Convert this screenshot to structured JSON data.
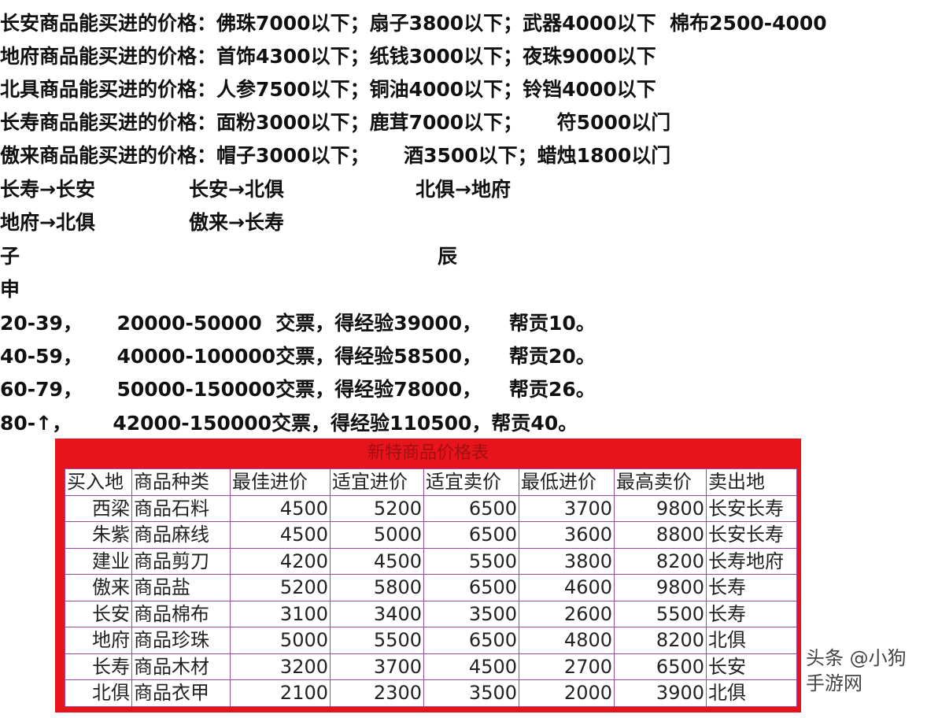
{
  "prices": [
    "长安商品能买进的价格：佛珠7000以下；扇子3800以下；武器4000以下  棉布2500-4000",
    "地府商品能买进的价格：首饰4300以下；纸钱3000以下；夜珠9000以下",
    "北具商品能买进的价格：人参7500以下；铜油4000以下；铃铛4000以下",
    "长寿商品能买进的价格：面粉3000以下；鹿茸7000以下；     符5000以门",
    "傲来商品能买进的价格：帽子3000以下；     酒3500以下；蜡烛1800以门"
  ],
  "routes": [
    [
      "长寿→长安",
      "长安→北俱",
      "北俱→地府"
    ],
    [
      "地府→北俱",
      "傲来→长寿"
    ]
  ],
  "times": {
    "a": "子",
    "b": "辰",
    "c": "申"
  },
  "levels": [
    "20-39，     20000-50000  交票，得经验39000，    帮贡10。",
    "40-59，     40000-100000交票，得经验58500，    帮贡20。",
    "60-79，     50000-150000交票，得经验78000，    帮贡26。",
    "80-↑，      42000-150000交票，得经验110500，帮贡40。"
  ],
  "table": {
    "title": "新特商品价格表",
    "headers": [
      "买入地",
      "商品种类",
      "最佳进价",
      "适宜进价",
      "适宜卖价",
      "最低进价",
      "最高卖价",
      "卖出地"
    ],
    "rows": [
      [
        "西梁",
        "商品石料",
        "4500",
        "5200",
        "6500",
        "3700",
        "9800",
        "长安长寿"
      ],
      [
        "朱紫",
        "商品麻线",
        "4500",
        "5000",
        "6500",
        "3600",
        "8800",
        "长安长寿"
      ],
      [
        "建业",
        "商品剪刀",
        "4200",
        "4500",
        "5500",
        "3800",
        "8200",
        "长寿地府"
      ],
      [
        "傲来",
        "商品盐",
        "5200",
        "5800",
        "6500",
        "4600",
        "9800",
        "长寿"
      ],
      [
        "长安",
        "商品棉布",
        "3100",
        "3400",
        "3500",
        "2600",
        "5500",
        "长寿"
      ],
      [
        "地府",
        "商品珍珠",
        "5000",
        "5500",
        "6500",
        "4800",
        "8200",
        "北俱"
      ],
      [
        "长寿",
        "商品木材",
        "3200",
        "3700",
        "4500",
        "2700",
        "6500",
        "长安"
      ],
      [
        "北俱",
        "商品衣甲",
        "2100",
        "2300",
        "3500",
        "2000",
        "3900",
        "北俱"
      ]
    ]
  },
  "watermark": "头条 @小狗手游网",
  "colors": {
    "table_frame": "#e8141b",
    "grid": "#9a4aa0"
  }
}
